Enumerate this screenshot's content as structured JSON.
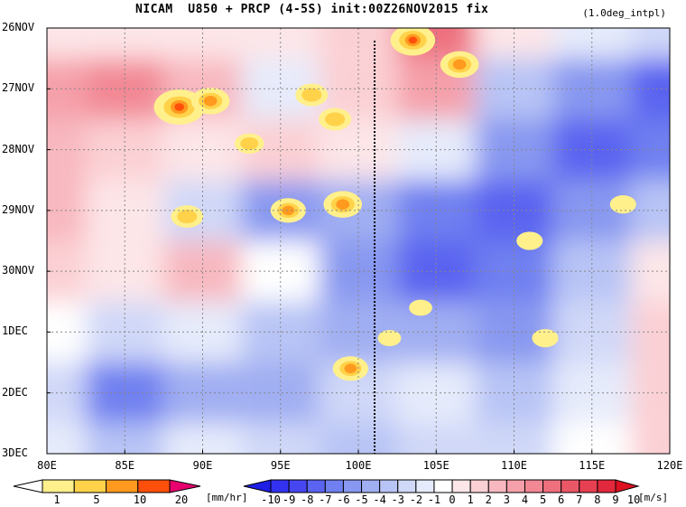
{
  "title": {
    "main": "NICAM  U850 + PRCP (4-5S) init:00Z26NOV2015 fix",
    "sub": "(1.0deg_intpl)"
  },
  "chart_data": {
    "type": "heatmap",
    "title": "NICAM  U850 + PRCP (4-5S) init:00Z26NOV2015 fix",
    "subtitle": "(1.0deg_intpl)",
    "x_axis": {
      "range": [
        "80E",
        "120E"
      ],
      "tick_labels": [
        "80E",
        "85E",
        "90E",
        "95E",
        "100E",
        "105E",
        "110E",
        "115E",
        "120E"
      ]
    },
    "y_axis": {
      "range": [
        "26NOV",
        "3DEC"
      ],
      "direction": "time increases downward",
      "tick_labels": [
        "26NOV",
        "27NOV",
        "28NOV",
        "29NOV",
        "30NOV",
        "1DEC",
        "2DEC",
        "3DEC"
      ]
    },
    "grid": "dotted",
    "reference_line": {
      "lon": "101E",
      "style": "black dotted vertical"
    },
    "precip_colorbar": {
      "labels": [
        "1",
        "5",
        "10",
        "20"
      ],
      "unit": "[mm/hr]",
      "colors": [
        "#ffffff",
        "#fff08c",
        "#ffd24a",
        "#ff9a1f",
        "#ff4f0a",
        "#e8006e"
      ]
    },
    "wind_colorbar": {
      "labels": [
        "-10",
        "-9",
        "-8",
        "-7",
        "-6",
        "-5",
        "-4",
        "-3",
        "-2",
        "-1",
        "0",
        "1",
        "2",
        "3",
        "4",
        "5",
        "6",
        "7",
        "8",
        "9",
        "10"
      ],
      "unit": "[m/s]",
      "colors": [
        "#1e1ee6",
        "#3232f0",
        "#4646f0",
        "#5a64f0",
        "#7080f0",
        "#8898f0",
        "#a0aef2",
        "#b8c4f5",
        "#d0d8f8",
        "#e6ebfb",
        "#ffffff",
        "#fde6e8",
        "#fbd0d4",
        "#f8b8bf",
        "#f5a0aa",
        "#f28894",
        "#ee707e",
        "#ea5868",
        "#e64052",
        "#e2283c",
        "#dc1020"
      ]
    },
    "series": [
      {
        "name": "U850",
        "note": "zonal wind at 850 hPa, m/s (approx.)",
        "lon": [
          80,
          85,
          90,
          95,
          100,
          105,
          110,
          115,
          120
        ],
        "rows": [
          {
            "time": "26NOV",
            "values": [
              1,
              1,
              1,
              1,
              2,
              6,
              1,
              -1,
              -2
            ]
          },
          {
            "time": "27NOV",
            "values": [
              4,
              5,
              3,
              -1,
              2,
              4,
              -3,
              -5,
              -7
            ]
          },
          {
            "time": "28NOV",
            "values": [
              3,
              2,
              1,
              2,
              1,
              -1,
              -5,
              -7,
              -6
            ]
          },
          {
            "time": "29NOV",
            "values": [
              3,
              1,
              -2,
              -5,
              -4,
              -6,
              -7,
              -5,
              -3
            ]
          },
          {
            "time": "30NOV",
            "values": [
              2,
              1,
              3,
              0,
              -5,
              -7,
              -6,
              -3,
              1
            ]
          },
          {
            "time": "1DEC",
            "values": [
              0,
              -2,
              -1,
              -3,
              -4,
              -4,
              -5,
              -2,
              2
            ]
          },
          {
            "time": "2DEC",
            "values": [
              -2,
              -6,
              -4,
              -4,
              -2,
              -1,
              -3,
              -1,
              2
            ]
          },
          {
            "time": "3DEC",
            "values": [
              -1,
              -3,
              -1,
              -2,
              -3,
              -2,
              -2,
              0,
              2
            ]
          }
        ]
      },
      {
        "name": "PRCP",
        "note": "precipitation patches, mm/hr (approx.)",
        "points": [
          {
            "lon": 103.5,
            "time_days": 0.2,
            "value": 10
          },
          {
            "lon": 106.5,
            "time_days": 0.6,
            "value": 8
          },
          {
            "lon": 88.5,
            "time_days": 1.3,
            "value": 12
          },
          {
            "lon": 90.5,
            "time_days": 1.2,
            "value": 8
          },
          {
            "lon": 97.0,
            "time_days": 1.1,
            "value": 6
          },
          {
            "lon": 98.5,
            "time_days": 1.5,
            "value": 6
          },
          {
            "lon": 93.0,
            "time_days": 1.9,
            "value": 5
          },
          {
            "lon": 89.0,
            "time_days": 3.1,
            "value": 6
          },
          {
            "lon": 95.5,
            "time_days": 3.0,
            "value": 7
          },
          {
            "lon": 99.0,
            "time_days": 2.9,
            "value": 8
          },
          {
            "lon": 111.0,
            "time_days": 3.5,
            "value": 4
          },
          {
            "lon": 117.0,
            "time_days": 2.9,
            "value": 4
          },
          {
            "lon": 104.0,
            "time_days": 4.6,
            "value": 3
          },
          {
            "lon": 102.0,
            "time_days": 5.1,
            "value": 3
          },
          {
            "lon": 112.0,
            "time_days": 5.1,
            "value": 4
          },
          {
            "lon": 99.5,
            "time_days": 5.6,
            "value": 7
          }
        ]
      }
    ]
  }
}
